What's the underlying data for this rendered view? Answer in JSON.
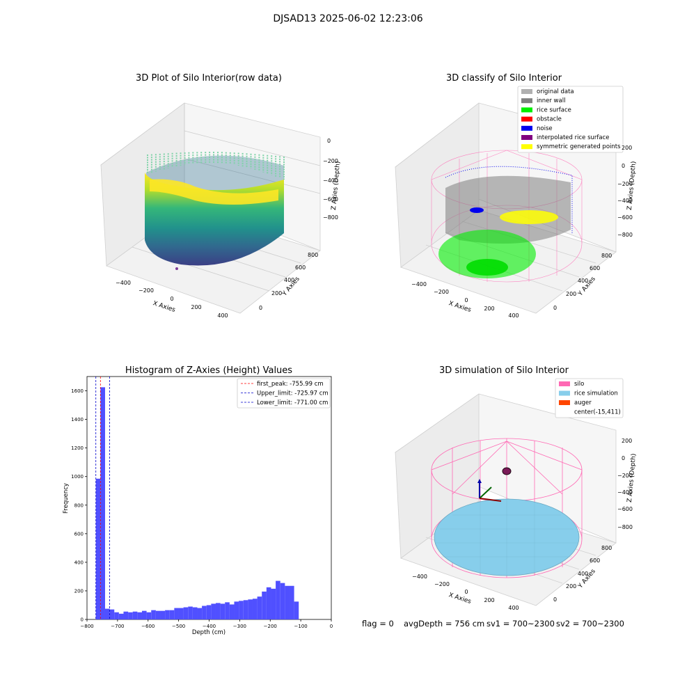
{
  "figure": {
    "suptitle": "DJSAD13 2025-06-02 12:23:06",
    "footer": {
      "flag": "flag = 0",
      "avg_depth": "avgDepth = 756 cm",
      "sv1": "sv1 = 700~2300",
      "sv2": "sv2 = 700~2300"
    }
  },
  "colors": {
    "histogram_bar": "#5050ff",
    "first_peak_line": "#ff0000",
    "limit_lines": "#0000cc",
    "original_data": "#b0b0b0",
    "inner_wall": "#808080",
    "rice_surface": "#00ee00",
    "obstacle": "#ff0000",
    "noise": "#0000ee",
    "interpolated_rice_surface": "#800080",
    "symmetric_generated_points": "#ffff00",
    "silo": "#ff69b4",
    "rice_simulation": "#87ceeb",
    "auger": "#ff4500"
  },
  "chart_data": [
    {
      "type": "scatter3d",
      "title": "3D Plot of Silo Interior(row data)",
      "xlabel": "X Axies",
      "ylabel": "Y Axies",
      "zlabel": "Z Axies (Depth)",
      "xticks": [
        "−400",
        "−200",
        "0",
        "200",
        "400"
      ],
      "yticks": [
        "0",
        "200",
        "400",
        "600",
        "800"
      ],
      "zticks": [
        "0",
        "−200",
        "−400",
        "−600",
        "−800"
      ],
      "colormap": "viridis",
      "grid": true
    },
    {
      "type": "scatter3d",
      "title": "3D classify of Silo Interior",
      "xlabel": "X Axies",
      "ylabel": "Y Axies",
      "zlabel": "Z Axies (Depth)",
      "xticks": [
        "−400",
        "−200",
        "0",
        "200",
        "400"
      ],
      "yticks": [
        "0",
        "200",
        "400",
        "600",
        "800"
      ],
      "zticks": [
        "200",
        "0",
        "−200",
        "−400",
        "−600",
        "−800"
      ],
      "legend_position": "top-right",
      "legend": [
        {
          "label": "original data",
          "color": "#b0b0b0"
        },
        {
          "label": "inner wall",
          "color": "#808080"
        },
        {
          "label": "rice surface",
          "color": "#00ee00"
        },
        {
          "label": "obstacle",
          "color": "#ff0000"
        },
        {
          "label": "noise",
          "color": "#0000ee"
        },
        {
          "label": "interpolated rice surface",
          "color": "#800080"
        },
        {
          "label": "symmetric generated points",
          "color": "#ffff00"
        }
      ],
      "grid": true
    },
    {
      "type": "bar",
      "title": "Histogram of Z-Axies (Height) Values",
      "xlabel": "Depth (cm)",
      "ylabel": "Frequency",
      "xlim": [
        -800,
        0
      ],
      "ylim": [
        0,
        1700
      ],
      "xticks": [
        -800,
        -700,
        -600,
        -500,
        -400,
        -300,
        -200,
        -100,
        0
      ],
      "yticks": [
        0,
        200,
        400,
        600,
        800,
        1000,
        1200,
        1400,
        1600
      ],
      "bin_start": -771,
      "bin_width": 15.1,
      "values": [
        985,
        1625,
        75,
        70,
        50,
        40,
        55,
        50,
        55,
        50,
        60,
        50,
        65,
        60,
        60,
        65,
        65,
        80,
        80,
        85,
        90,
        85,
        80,
        95,
        100,
        110,
        115,
        110,
        120,
        105,
        125,
        130,
        135,
        140,
        145,
        160,
        195,
        225,
        215,
        270,
        255,
        235,
        235,
        125
      ],
      "vlines": [
        {
          "x": -755.99,
          "label": "first_peak: -755.99 cm",
          "color": "#ff0000"
        },
        {
          "x": -725.97,
          "label": "Upper_limit: -725.97 cm",
          "color": "#0000cc"
        },
        {
          "x": -771.0,
          "label": "Lower_limit: -771.00 cm",
          "color": "#0000cc"
        }
      ],
      "legend_position": "top-right",
      "grid": false
    },
    {
      "type": "surface3d",
      "title": "3D simulation of Silo Interior",
      "xlabel": "X Axies",
      "ylabel": "Y Axies",
      "zlabel": "Z Axies (Depth)",
      "xticks": [
        "−400",
        "−200",
        "0",
        "200",
        "400"
      ],
      "yticks": [
        "0",
        "200",
        "400",
        "600",
        "800"
      ],
      "zticks": [
        "200",
        "0",
        "−200",
        "−400",
        "−600",
        "−800"
      ],
      "legend_position": "top-right",
      "legend": [
        {
          "label": "silo",
          "color": "#ff69b4"
        },
        {
          "label": "rice simulation",
          "color": "#87ceeb"
        },
        {
          "label": "auger",
          "color": "#ff4500"
        },
        {
          "label": "center(-15,411)",
          "color": ""
        }
      ],
      "grid": true
    }
  ]
}
